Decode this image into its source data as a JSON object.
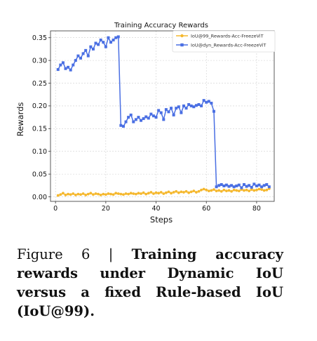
{
  "chart_data": {
    "type": "line",
    "title": "Training Accuracy Rewards",
    "xlabel": "Steps",
    "ylabel": "Rewards",
    "xlim": [
      -2,
      87
    ],
    "ylim": [
      -0.01,
      0.365
    ],
    "xticks": [
      0,
      20,
      40,
      60,
      80
    ],
    "yticks": [
      0.0,
      0.05,
      0.1,
      0.15,
      0.2,
      0.25,
      0.3,
      0.35
    ],
    "grid": true,
    "legend_position": "top-right",
    "series": [
      {
        "name": "IoU@99_Rewards-Acc-FreezeViT",
        "color": "#f5b82e",
        "marker": "circle",
        "x": [
          1,
          2,
          3,
          4,
          5,
          6,
          7,
          8,
          9,
          10,
          11,
          12,
          13,
          14,
          15,
          16,
          17,
          18,
          19,
          20,
          21,
          22,
          23,
          24,
          25,
          26,
          27,
          28,
          29,
          30,
          31,
          32,
          33,
          34,
          35,
          36,
          37,
          38,
          39,
          40,
          41,
          42,
          43,
          44,
          45,
          46,
          47,
          48,
          49,
          50,
          51,
          52,
          53,
          54,
          55,
          56,
          57,
          58,
          59,
          60,
          61,
          62,
          63,
          64,
          65,
          66,
          67,
          68,
          69,
          70,
          71,
          72,
          73,
          74,
          75,
          76,
          77,
          78,
          79,
          80,
          81,
          82,
          83,
          84,
          85
        ],
        "y": [
          0.003,
          0.005,
          0.008,
          0.004,
          0.006,
          0.005,
          0.007,
          0.004,
          0.006,
          0.005,
          0.007,
          0.004,
          0.006,
          0.008,
          0.005,
          0.007,
          0.006,
          0.004,
          0.006,
          0.005,
          0.007,
          0.006,
          0.005,
          0.008,
          0.007,
          0.006,
          0.005,
          0.007,
          0.006,
          0.008,
          0.007,
          0.006,
          0.008,
          0.007,
          0.009,
          0.006,
          0.008,
          0.01,
          0.007,
          0.009,
          0.008,
          0.01,
          0.007,
          0.009,
          0.011,
          0.008,
          0.01,
          0.012,
          0.009,
          0.011,
          0.01,
          0.012,
          0.009,
          0.011,
          0.013,
          0.01,
          0.012,
          0.015,
          0.017,
          0.015,
          0.013,
          0.014,
          0.016,
          0.013,
          0.014,
          0.012,
          0.015,
          0.013,
          0.014,
          0.012,
          0.015,
          0.014,
          0.013,
          0.016,
          0.014,
          0.015,
          0.013,
          0.016,
          0.014,
          0.015,
          0.017,
          0.016,
          0.014,
          0.015,
          0.018
        ]
      },
      {
        "name": "IoU@dyn_Rewards-Acc-FreezeViT",
        "color": "#4a6fe3",
        "marker": "square",
        "x": [
          1,
          2,
          3,
          4,
          5,
          6,
          7,
          8,
          9,
          10,
          11,
          12,
          13,
          14,
          15,
          16,
          17,
          18,
          19,
          20,
          21,
          22,
          23,
          24,
          25,
          26,
          27,
          28,
          29,
          30,
          31,
          32,
          33,
          34,
          35,
          36,
          37,
          38,
          39,
          40,
          41,
          42,
          43,
          44,
          45,
          46,
          47,
          48,
          49,
          50,
          51,
          52,
          53,
          54,
          55,
          56,
          57,
          58,
          59,
          60,
          61,
          62,
          63,
          64,
          65,
          66,
          67,
          68,
          69,
          70,
          71,
          72,
          73,
          74,
          75,
          76,
          77,
          78,
          79,
          80,
          81,
          82,
          83,
          84,
          85
        ],
        "y": [
          0.28,
          0.29,
          0.295,
          0.282,
          0.285,
          0.279,
          0.29,
          0.3,
          0.31,
          0.305,
          0.315,
          0.322,
          0.31,
          0.33,
          0.325,
          0.338,
          0.335,
          0.345,
          0.34,
          0.33,
          0.35,
          0.34,
          0.345,
          0.35,
          0.352,
          0.157,
          0.155,
          0.165,
          0.175,
          0.18,
          0.165,
          0.17,
          0.175,
          0.168,
          0.172,
          0.176,
          0.173,
          0.182,
          0.178,
          0.175,
          0.19,
          0.185,
          0.17,
          0.192,
          0.187,
          0.195,
          0.18,
          0.195,
          0.198,
          0.185,
          0.2,
          0.195,
          0.203,
          0.2,
          0.198,
          0.201,
          0.203,
          0.2,
          0.212,
          0.208,
          0.21,
          0.206,
          0.188,
          0.022,
          0.025,
          0.027,
          0.024,
          0.026,
          0.023,
          0.025,
          0.022,
          0.024,
          0.026,
          0.02,
          0.027,
          0.023,
          0.025,
          0.021,
          0.028,
          0.024,
          0.026,
          0.022,
          0.025,
          0.027,
          0.022
        ]
      }
    ]
  },
  "caption": {
    "label": "Figure 6 | ",
    "text": "Training accuracy rewards under Dynamic IoU versus a fixed Rule-based IoU (IoU@99)."
  }
}
